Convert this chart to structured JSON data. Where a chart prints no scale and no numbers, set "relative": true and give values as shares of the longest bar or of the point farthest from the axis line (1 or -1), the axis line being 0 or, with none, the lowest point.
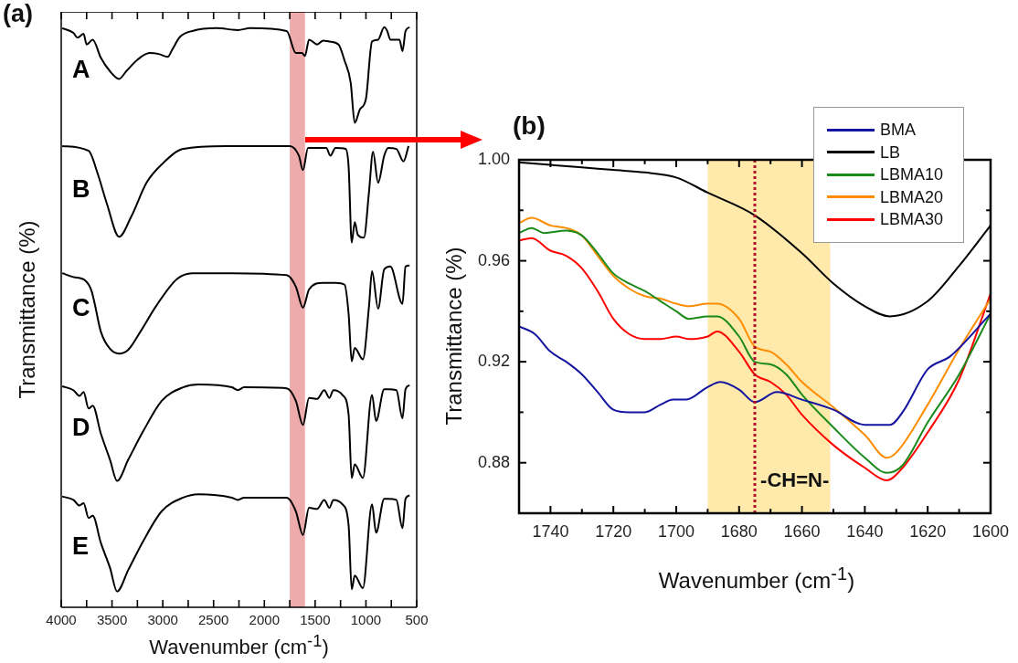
{
  "chart_data": [
    {
      "type": "line",
      "title": "(a)",
      "relative": true,
      "tick_labels": false,
      "marker": "none",
      "annotations": [
        "A"
      ],
      "xlim": [
        4000,
        500
      ],
      "xticks": [
        4000,
        {
          "value": 3750,
          "label": null
        },
        3500,
        {
          "value": 3250,
          "label": null
        },
        3000,
        {
          "value": 2750,
          "label": null
        },
        2500,
        {
          "value": 2250,
          "label": null
        },
        2000,
        {
          "value": 1750,
          "label": null
        },
        1500,
        {
          "value": 1250,
          "label": null
        },
        1000,
        {
          "value": 750,
          "label": null
        },
        500
      ],
      "bands": [
        {
          "axis": "x",
          "from": 1750,
          "to": 1600,
          "color": "#e06666"
        }
      ],
      "series": [
        {
          "color": "#000000",
          "x": [
            3990,
            3880,
            3840,
            3780,
            3750,
            3690,
            3610,
            3520,
            3430,
            3360,
            3250,
            3130,
            3040,
            2950,
            2910,
            2830,
            2710,
            2470,
            2260,
            2140,
            1780,
            1690,
            1630,
            1600,
            1560,
            1480,
            1420,
            1360,
            1270,
            1210,
            1150,
            1110,
            1060,
            1000,
            940,
            880,
            820,
            790,
            760,
            670,
            640,
            610,
            570
          ],
          "values": [
            0.99,
            0.94,
            0.89,
            0.93,
            0.82,
            0.87,
            0.68,
            0.54,
            0.46,
            0.54,
            0.66,
            0.73,
            0.72,
            0.69,
            0.76,
            0.9,
            0.96,
            0.99,
            0.97,
            0.99,
            0.96,
            0.73,
            0.73,
            0.7,
            0.87,
            0.82,
            0.86,
            0.85,
            0.82,
            0.65,
            0.42,
            0,
            0.14,
            0.25,
            0.85,
            0.87,
            1,
            0.96,
            0.87,
            0.87,
            0.75,
            0.96,
            1
          ]
        }
      ]
    },
    {
      "type": "line",
      "relative": true,
      "tick_labels": false,
      "marker": "none",
      "annotations": [
        "B"
      ],
      "xlim": [
        4000,
        500
      ],
      "bands": [
        {
          "axis": "x",
          "from": 1750,
          "to": 1600,
          "color": "#e06666"
        }
      ],
      "series": [
        {
          "color": "#000000",
          "x": [
            3990,
            3730,
            3640,
            3550,
            3430,
            3310,
            3160,
            3010,
            2800,
            2380,
            1750,
            1660,
            1620,
            1570,
            1390,
            1350,
            1300,
            1200,
            1170,
            1140,
            1110,
            1080,
            1020,
            970,
            930,
            880,
            820,
            780,
            700,
            630,
            580
          ],
          "values": [
            1,
            0.95,
            0.71,
            0.4,
            0.06,
            0.27,
            0.62,
            0.81,
            0.97,
            1,
            1,
            0.9,
            0.75,
            0.98,
            0.98,
            0.9,
            0.98,
            0.97,
            0.78,
            0,
            0.21,
            0.08,
            0.05,
            0.52,
            0.94,
            0.62,
            0.9,
            0.98,
            0.97,
            0.84,
            1
          ]
        }
      ]
    },
    {
      "type": "line",
      "relative": true,
      "tick_labels": false,
      "marker": "none",
      "annotations": [
        "C"
      ],
      "ylabel": "Transmittance (%)",
      "xlim": [
        4000,
        500
      ],
      "bands": [
        {
          "axis": "x",
          "from": 1750,
          "to": 1600,
          "color": "#e06666"
        }
      ],
      "series": [
        {
          "color": "#000000",
          "x": [
            3990,
            3880,
            3760,
            3700,
            3670,
            3610,
            3520,
            3430,
            3340,
            3220,
            3070,
            2860,
            2710,
            2380,
            1780,
            1690,
            1620,
            1560,
            1420,
            1300,
            1210,
            1170,
            1140,
            1110,
            1030,
            970,
            940,
            880,
            820,
            760,
            640,
            610,
            570
          ],
          "values": [
            0.92,
            0.88,
            0.84,
            0.73,
            0.6,
            0.31,
            0.13,
            0.08,
            0.12,
            0.31,
            0.57,
            0.86,
            0.92,
            0.92,
            0.9,
            0.78,
            0.56,
            0.75,
            0.82,
            0.82,
            0.8,
            0.49,
            0,
            0.14,
            0.02,
            0.57,
            0.94,
            0.55,
            0.96,
            0.99,
            0.6,
            0.99,
            1
          ]
        }
      ]
    },
    {
      "type": "line",
      "relative": true,
      "tick_labels": false,
      "marker": "none",
      "annotations": [
        "D"
      ],
      "xlim": [
        4000,
        500
      ],
      "bands": [
        {
          "axis": "x",
          "from": 1750,
          "to": 1600,
          "color": "#e06666"
        }
      ],
      "series": [
        {
          "color": "#000000",
          "x": [
            3990,
            3880,
            3820,
            3780,
            3730,
            3690,
            3610,
            3520,
            3450,
            3340,
            3190,
            3010,
            2800,
            2650,
            2320,
            2260,
            2200,
            1780,
            1690,
            1620,
            1560,
            1480,
            1410,
            1360,
            1320,
            1230,
            1170,
            1140,
            1110,
            1030,
            940,
            900,
            820,
            780,
            700,
            640,
            610,
            570
          ],
          "values": [
            0.98,
            0.94,
            0.88,
            0.92,
            0.75,
            0.78,
            0.49,
            0.22,
            0,
            0.22,
            0.52,
            0.83,
            0.97,
            1,
            0.97,
            0.94,
            0.97,
            0.96,
            0.83,
            0.58,
            0.86,
            0.85,
            0.94,
            0.86,
            0.94,
            0.89,
            0.68,
            0.03,
            0.17,
            0.03,
            0.89,
            0.62,
            0.95,
            0.95,
            0.94,
            0.65,
            0.95,
            0.99
          ]
        }
      ]
    },
    {
      "type": "line",
      "relative": true,
      "tick_labels": "x",
      "marker": "none",
      "annotations": [
        "E"
      ],
      "xlabel": "Wavenumber (cm$^{-1}$)",
      "xlim": [
        4000,
        500
      ],
      "xticks": [
        4000,
        {
          "value": 3750,
          "label": null
        },
        3500,
        {
          "value": 3250,
          "label": null
        },
        3000,
        {
          "value": 2750,
          "label": null
        },
        2500,
        {
          "value": 2250,
          "label": null
        },
        2000,
        {
          "value": 1750,
          "label": null
        },
        1500,
        {
          "value": 1250,
          "label": null
        },
        1000,
        {
          "value": 750,
          "label": null
        },
        500
      ],
      "bands": [
        {
          "axis": "x",
          "from": 1750,
          "to": 1600,
          "color": "#e06666"
        }
      ],
      "series": [
        {
          "color": "#000000",
          "x": [
            3990,
            3880,
            3820,
            3780,
            3730,
            3690,
            3610,
            3520,
            3450,
            3340,
            3190,
            3010,
            2800,
            2650,
            2320,
            2260,
            2200,
            1780,
            1690,
            1620,
            1560,
            1480,
            1410,
            1360,
            1320,
            1230,
            1170,
            1140,
            1110,
            1030,
            940,
            900,
            820,
            780,
            700,
            640,
            610,
            570
          ],
          "values": [
            0.98,
            0.95,
            0.9,
            0.92,
            0.79,
            0.81,
            0.57,
            0.35,
            0.14,
            0.33,
            0.59,
            0.85,
            0.97,
            1,
            0.97,
            0.95,
            0.97,
            0.97,
            0.85,
            0.64,
            0.88,
            0.87,
            0.95,
            0.88,
            0.95,
            0.91,
            0.72,
            0.16,
            0.28,
            0.17,
            0.91,
            0.66,
            0.96,
            0.96,
            0.95,
            0.7,
            0.96,
            0.99
          ]
        }
      ]
    },
    {
      "type": "line",
      "title": "(b)",
      "xlabel": "Wavenumber (cm$^{-1}$)",
      "ylabel": "Transmittance (%)",
      "legend": "top right",
      "marker": "none",
      "xlim": [
        1750,
        1600
      ],
      "xticks": [
        1740,
        {
          "value": 1730,
          "label": null
        },
        1720,
        {
          "value": 1710,
          "label": null
        },
        1700,
        {
          "value": 1690,
          "label": null
        },
        1680,
        {
          "value": 1670,
          "label": null
        },
        1660,
        {
          "value": 1650,
          "label": null
        },
        1640,
        {
          "value": 1630,
          "label": null
        },
        1620,
        {
          "value": 1610,
          "label": null
        },
        1600
      ],
      "ylim": [
        0.86,
        1.0
      ],
      "yticks": [
        {
          "value": 0.88,
          "label": "0.88"
        },
        {
          "value": 0.9,
          "label": null
        },
        {
          "value": 0.92,
          "label": "0.92"
        },
        {
          "value": 0.94,
          "label": null
        },
        {
          "value": 0.96,
          "label": "0.96"
        },
        {
          "value": 0.98,
          "label": null
        },
        {
          "value": 1.0,
          "label": "1.00"
        }
      ],
      "bands": [
        {
          "axis": "x",
          "from": 1690,
          "to": 1651,
          "label": "-CH=N-",
          "color": "#ffd966"
        }
      ],
      "ref_lines": [
        {
          "axis": "x",
          "value": 1675,
          "color": "#b0102a",
          "line_style": "dotted"
        }
      ],
      "series": [
        {
          "name": "BMA",
          "color": "#1414a0",
          "x": [
            1750,
            1745,
            1740,
            1735,
            1730,
            1725,
            1720,
            1715,
            1710,
            1705,
            1701,
            1697,
            1690,
            1686,
            1680,
            1675,
            1668,
            1660,
            1650,
            1640,
            1632,
            1628,
            1620,
            1613,
            1600
          ],
          "values": [
            0.934,
            0.931,
            0.924,
            0.92,
            0.915,
            0.908,
            0.901,
            0.9,
            0.9,
            0.903,
            0.905,
            0.905,
            0.91,
            0.912,
            0.909,
            0.904,
            0.908,
            0.905,
            0.901,
            0.895,
            0.895,
            0.9,
            0.917,
            0.922,
            0.939
          ]
        },
        {
          "name": "LB",
          "color": "#000000",
          "x": [
            1750,
            1740,
            1730,
            1720,
            1710,
            1700,
            1690,
            1675,
            1660,
            1650,
            1640,
            1632,
            1620,
            1610,
            1600
          ],
          "values": [
            0.999,
            0.998,
            0.997,
            0.996,
            0.995,
            0.993,
            0.987,
            0.978,
            0.963,
            0.951,
            0.942,
            0.938,
            0.944,
            0.958,
            0.974
          ]
        },
        {
          "name": "LBMA10",
          "color": "#1a8a1a",
          "x": [
            1750,
            1746,
            1742,
            1735,
            1730,
            1725,
            1720,
            1715,
            1710,
            1705,
            1700,
            1696,
            1690,
            1687,
            1680,
            1675,
            1670,
            1665,
            1660,
            1650,
            1640,
            1633,
            1628,
            1620,
            1610,
            1600
          ],
          "values": [
            0.971,
            0.973,
            0.971,
            0.972,
            0.97,
            0.963,
            0.955,
            0.951,
            0.948,
            0.944,
            0.94,
            0.937,
            0.938,
            0.938,
            0.93,
            0.92,
            0.919,
            0.915,
            0.907,
            0.894,
            0.882,
            0.876,
            0.879,
            0.896,
            0.915,
            0.939
          ]
        },
        {
          "name": "LBMA20",
          "color": "#ff8c00",
          "x": [
            1750,
            1746,
            1740,
            1735,
            1730,
            1725,
            1720,
            1715,
            1710,
            1705,
            1700,
            1696,
            1690,
            1687,
            1680,
            1675,
            1670,
            1665,
            1660,
            1650,
            1640,
            1633,
            1630,
            1620,
            1610,
            1600
          ],
          "values": [
            0.975,
            0.977,
            0.974,
            0.973,
            0.97,
            0.962,
            0.954,
            0.949,
            0.946,
            0.945,
            0.943,
            0.942,
            0.943,
            0.943,
            0.937,
            0.926,
            0.924,
            0.919,
            0.912,
            0.902,
            0.891,
            0.882,
            0.884,
            0.903,
            0.925,
            0.945
          ]
        },
        {
          "name": "LBMA30",
          "color": "#ff0000",
          "x": [
            1750,
            1746,
            1740,
            1735,
            1730,
            1725,
            1720,
            1715,
            1710,
            1705,
            1700,
            1696,
            1690,
            1687,
            1680,
            1675,
            1670,
            1665,
            1660,
            1650,
            1640,
            1633,
            1628,
            1620,
            1610,
            1600
          ],
          "values": [
            0.968,
            0.969,
            0.964,
            0.962,
            0.957,
            0.948,
            0.937,
            0.931,
            0.929,
            0.929,
            0.93,
            0.929,
            0.93,
            0.932,
            0.924,
            0.915,
            0.912,
            0.907,
            0.899,
            0.887,
            0.878,
            0.873,
            0.878,
            0.892,
            0.913,
            0.947
          ]
        }
      ]
    }
  ]
}
